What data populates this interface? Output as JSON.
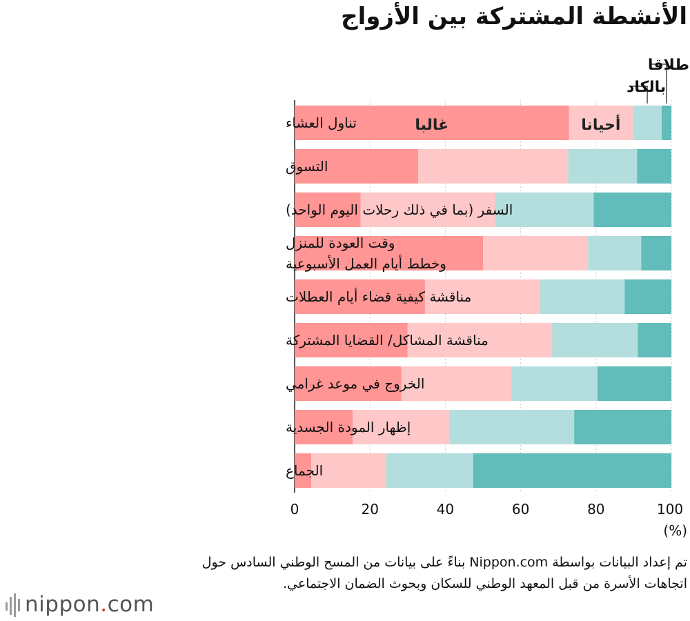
{
  "title": "الأنشطة المشتركة بين الأزواج",
  "source_note": "تم إعداد البيانات بواسطة Nippon.com بناءً على بيانات من المسح الوطني السادس حول اتجاهات الأسرة من قبل المعهد الوطني للسكان وبحوث الضمان الاجتماعي.",
  "logo": {
    "word": "nippon",
    "dot": ".",
    "suffix": "com"
  },
  "colors": {
    "often": "#ff9594",
    "sometimes": "#ffc8c8",
    "rarely": "#b3dedd",
    "never": "#62bcb9",
    "grid": "#c8c8c8"
  },
  "chart_data": {
    "type": "bar",
    "orientation": "horizontal",
    "stacked": true,
    "title": "الأنشطة المشتركة بين الأزواج",
    "unit": "(%)",
    "xlim": [
      0,
      100
    ],
    "xticks": [
      0,
      20,
      40,
      60,
      80,
      100
    ],
    "grid": true,
    "categories": [
      [
        "تناول العشاء"
      ],
      [
        "التسوق"
      ],
      [
        "السفر (بما في ذلك رحلات اليوم الواحد)"
      ],
      [
        "وقت العودة للمنزل",
        "وخطط أيام العمل الأسبوعية"
      ],
      [
        "مناقشة كيفية قضاء أيام العطلات"
      ],
      [
        "مناقشة المشاكل/ القضايا المشتركة"
      ],
      [
        "الخروج في موعد غرامي"
      ],
      [
        "إظهار المودة الجسدية"
      ],
      [
        "الجماع"
      ]
    ],
    "series": [
      {
        "name": "غالبا",
        "values": [
          72.8,
          32.8,
          17.5,
          50.0,
          34.6,
          30.0,
          28.3,
          15.4,
          4.4
        ]
      },
      {
        "name": "أحيانا",
        "values": [
          17.0,
          39.8,
          35.7,
          27.9,
          30.6,
          38.2,
          29.2,
          25.6,
          19.9
        ]
      },
      {
        "name": "بالكاد",
        "values": [
          7.6,
          18.3,
          26.2,
          14.1,
          22.4,
          22.9,
          22.9,
          33.2,
          23.1
        ]
      },
      {
        "name": "إطلاقا",
        "values": [
          2.6,
          9.1,
          20.6,
          8.0,
          12.4,
          8.9,
          19.6,
          25.8,
          52.6
        ]
      }
    ]
  }
}
